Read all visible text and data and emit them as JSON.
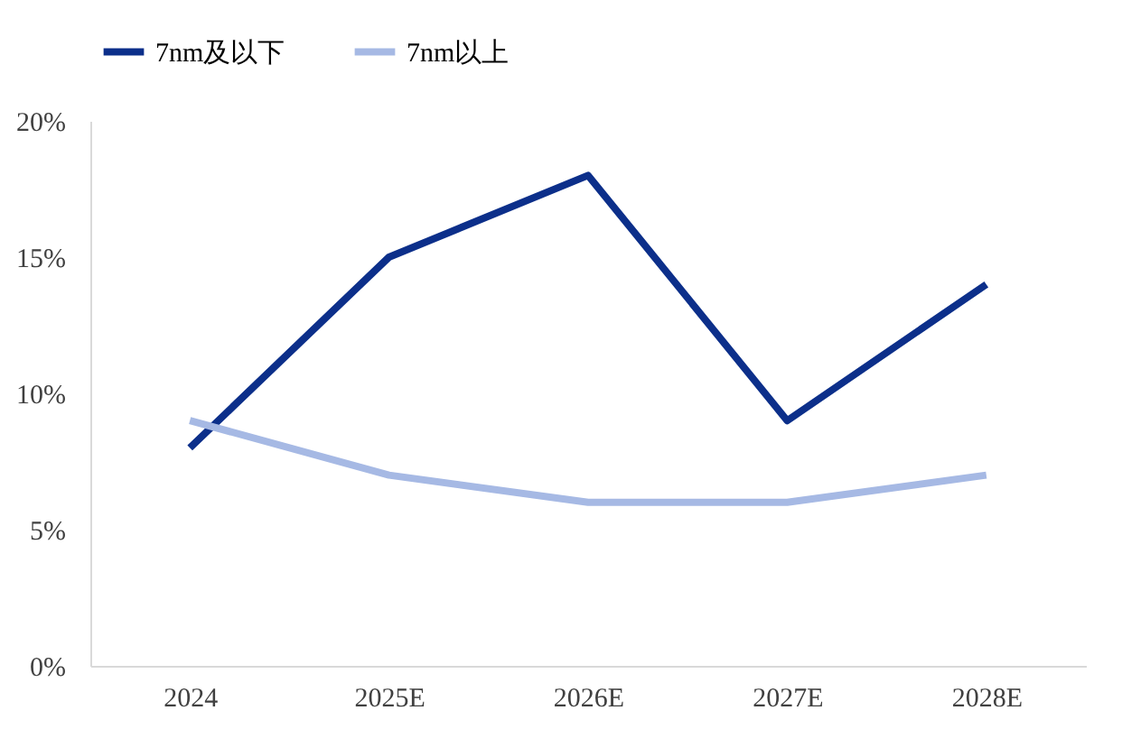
{
  "chart_data": {
    "type": "line",
    "categories": [
      "2024",
      "2025E",
      "2026E",
      "2027E",
      "2028E"
    ],
    "series": [
      {
        "name": "7nm及以下",
        "color": "#0c2f8a",
        "values": [
          8,
          15,
          18,
          9,
          14
        ]
      },
      {
        "name": "7nm以上",
        "color": "#a6b9e4",
        "values": [
          9,
          7,
          6,
          6,
          7
        ]
      }
    ],
    "ylim": [
      0,
      20
    ],
    "yticks": [
      {
        "value": 0,
        "label": "0%"
      },
      {
        "value": 5,
        "label": "5%"
      },
      {
        "value": 10,
        "label": "10%"
      },
      {
        "value": 15,
        "label": "15%"
      },
      {
        "value": 20,
        "label": "20%"
      }
    ],
    "grid": false,
    "legend": "top",
    "marker": "none",
    "line_style": "solid"
  }
}
